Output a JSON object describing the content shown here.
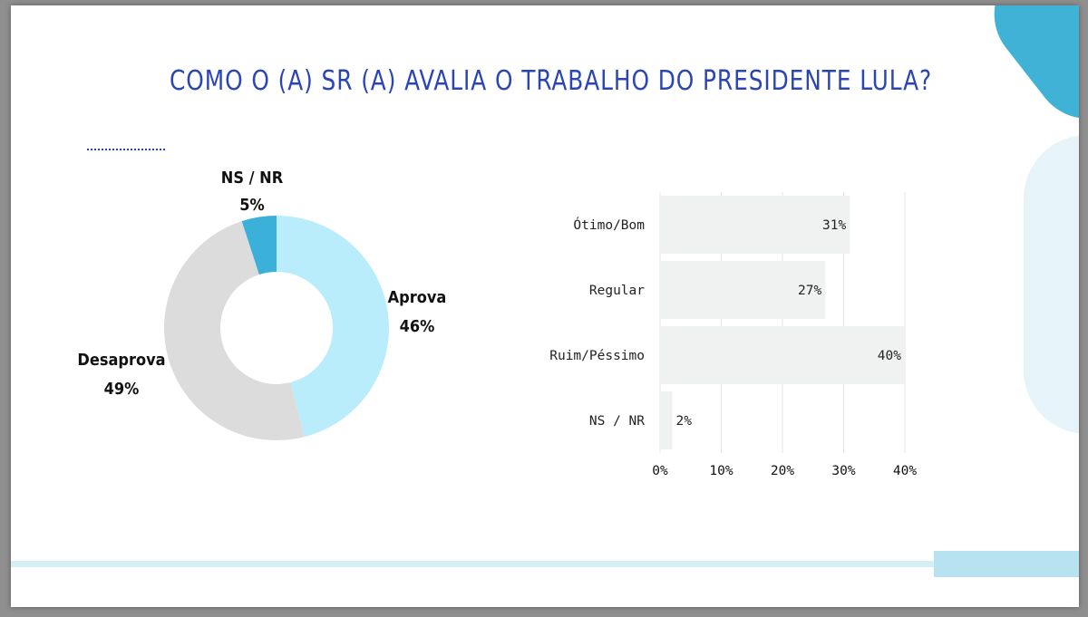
{
  "title": "COMO O (A) SR (A) AVALIA O TRABALHO DO PRESIDENTE LULA?",
  "colors": {
    "title": "#2a45b8",
    "aprova": "#baedfb",
    "desaprova": "#dcdcdc",
    "ns_nr": "#3bb0d8",
    "bar": "#f0f2f2",
    "accent": "#3fb2d6"
  },
  "chart_data": [
    {
      "type": "pie",
      "donut": true,
      "slices": [
        {
          "name": "Aprova",
          "value": 46,
          "label": "46%"
        },
        {
          "name": "Desaprova",
          "value": 49,
          "label": "49%"
        },
        {
          "name": "NS / NR",
          "value": 5,
          "label": "5%"
        }
      ]
    },
    {
      "type": "bar",
      "orientation": "horizontal",
      "categories": [
        "Ótimo/Bom",
        "Regular",
        "Ruim/Péssimo",
        "NS / NR"
      ],
      "values": [
        31,
        27,
        40,
        2
      ],
      "value_labels": [
        "31%",
        "27%",
        "40%",
        "2%"
      ],
      "xlim": [
        0,
        40
      ],
      "xticks": [
        "0%",
        "10%",
        "20%",
        "30%",
        "40%"
      ],
      "grid": true
    }
  ]
}
